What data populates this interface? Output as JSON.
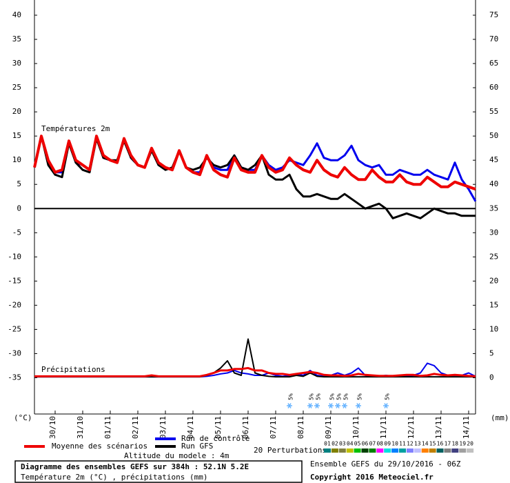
{
  "chart_data": {
    "type": "line",
    "title": "Diagramme des ensembles GEFS sur 384h : 52.1N 5.2E",
    "subtitle": "Température 2m (°C) , précipitations (mm)",
    "run_label": "Ensemble GEFS du 29/10/2016 - 06Z",
    "copyright": "Copyright 2016 Meteociel.fr",
    "altitude_label": "Altitude du modele : 4m",
    "temperature_label": "Températures 2m",
    "precipitation_label": "Précipitations",
    "y_axis_label": "(°C)",
    "y2_axis_label": "(mm)",
    "perturbations_label": "20 Perturbations",
    "x": [
      0,
      6,
      12,
      18,
      24,
      30,
      36,
      42,
      48,
      54,
      60,
      66,
      72,
      78,
      84,
      90,
      96,
      102,
      108,
      114,
      120,
      126,
      132,
      138,
      144,
      150,
      156,
      162,
      168,
      174,
      180,
      186,
      192,
      198,
      204,
      210,
      216,
      222,
      228,
      234,
      240,
      246,
      252,
      258,
      264,
      270,
      276,
      282,
      288,
      294,
      300,
      306,
      312,
      318,
      324,
      330,
      336,
      342,
      348,
      354,
      360,
      366,
      372,
      378,
      384
    ],
    "xlim": [
      0,
      384
    ],
    "xticks": [
      {
        "value": 18,
        "label": "30/10"
      },
      {
        "value": 42,
        "label": "31/10"
      },
      {
        "value": 66,
        "label": "01/11"
      },
      {
        "value": 90,
        "label": "02/11"
      },
      {
        "value": 114,
        "label": "03/11"
      },
      {
        "value": 138,
        "label": "04/11"
      },
      {
        "value": 162,
        "label": "05/11"
      },
      {
        "value": 186,
        "label": "06/11"
      },
      {
        "value": 210,
        "label": "07/11"
      },
      {
        "value": 234,
        "label": "08/11"
      },
      {
        "value": 258,
        "label": "09/11"
      },
      {
        "value": 282,
        "label": "10/11"
      },
      {
        "value": 306,
        "label": "11/11"
      },
      {
        "value": 330,
        "label": "12/11"
      },
      {
        "value": 354,
        "label": "13/11"
      },
      {
        "value": 378,
        "label": "14/11"
      }
    ],
    "ylim": [
      -42.5,
      43
    ],
    "yticks": [
      -35,
      -30,
      -25,
      -20,
      -15,
      -10,
      -5,
      0,
      5,
      10,
      15,
      20,
      25,
      30,
      35,
      40
    ],
    "y2lim": [
      -7.5,
      78
    ],
    "y2ticks": [
      0,
      5,
      10,
      15,
      20,
      25,
      30,
      35,
      40,
      45,
      50,
      55,
      60,
      65,
      70,
      75
    ],
    "series": [
      {
        "name": "Run de contrôle",
        "color": "#0000ee",
        "width": 3,
        "values": [
          8.5,
          15,
          9.5,
          7.5,
          7.5,
          14,
          9.5,
          9,
          8,
          15,
          10.5,
          10,
          9.5,
          14.5,
          10.5,
          9,
          8.5,
          12.5,
          9,
          8.5,
          8,
          12,
          8.5,
          7.5,
          7.5,
          11,
          8.5,
          8,
          8,
          11,
          8.5,
          8,
          8,
          11,
          9,
          8,
          8.5,
          10,
          9.5,
          9,
          11,
          13.5,
          10.5,
          10,
          10,
          11,
          13,
          10,
          9,
          8.5,
          9,
          7,
          7,
          8,
          7.5,
          7,
          7,
          8,
          7,
          6.5,
          6,
          9.5,
          6,
          4,
          1.5
        ]
      },
      {
        "name": "Run GFS",
        "color": "#000000",
        "width": 3,
        "values": [
          8.5,
          15,
          9,
          7,
          6.5,
          13.5,
          9.5,
          8,
          7.5,
          14.5,
          10.5,
          10,
          10,
          14,
          10.5,
          9,
          8.5,
          12,
          9,
          8,
          8.5,
          12,
          8.5,
          8,
          8.5,
          10.5,
          9,
          8.5,
          9,
          11,
          8.5,
          8,
          9,
          11,
          7,
          6,
          6,
          7,
          4,
          2.5,
          2.5,
          3,
          2.5,
          2,
          2,
          3,
          2,
          1,
          0,
          0.5,
          1,
          0,
          -2,
          -1.5,
          -1,
          -1.5,
          -2,
          -1,
          0,
          -0.5,
          -1,
          -1,
          -1.5,
          -1.5,
          -1.5
        ]
      },
      {
        "name": "Moyenne des scénarios",
        "color": "#ee0000",
        "width": 4,
        "values": [
          8.5,
          15,
          10,
          7.5,
          8,
          14,
          10,
          9,
          8,
          15,
          11,
          10,
          9.5,
          14.5,
          11,
          9,
          8.5,
          12.5,
          9.5,
          8.5,
          8,
          12,
          8.5,
          7.5,
          7,
          11,
          8,
          7,
          6.5,
          10.5,
          8,
          7.5,
          7.5,
          11,
          8.5,
          7.5,
          8,
          10.5,
          9,
          8,
          7.5,
          10,
          8,
          7,
          6.5,
          8.5,
          7,
          6,
          6,
          8,
          6.5,
          5.5,
          5.5,
          7,
          5.5,
          5,
          5,
          6.5,
          5.5,
          4.5,
          4.5,
          5.5,
          5,
          4.5,
          4
        ]
      },
      {
        "name": "Run de contrôle",
        "color": "#0000ee",
        "width": 2,
        "axis": "y2",
        "values": [
          0.2,
          0.2,
          0.2,
          0.2,
          0.2,
          0.2,
          0.2,
          0.2,
          0.2,
          0.2,
          0.2,
          0.2,
          0.2,
          0.2,
          0.2,
          0.2,
          0.2,
          0.2,
          0.2,
          0.2,
          0.2,
          0.2,
          0.2,
          0.2,
          0.2,
          0.3,
          0.5,
          0.8,
          1,
          1.5,
          1,
          0.8,
          0.5,
          0.5,
          1,
          0.5,
          0.3,
          0.5,
          0.8,
          0.5,
          1.5,
          0.5,
          0.3,
          0.5,
          1,
          0.5,
          1,
          2,
          0.5,
          0.3,
          0.3,
          0.5,
          0.3,
          0.5,
          0.3,
          0.5,
          1,
          3,
          2.5,
          1,
          0.5,
          0.5,
          0.5,
          1,
          0.3
        ]
      },
      {
        "name": "Run GFS",
        "color": "#000000",
        "width": 2,
        "axis": "y2",
        "values": [
          0.2,
          0.2,
          0.2,
          0.2,
          0.2,
          0.2,
          0.2,
          0.2,
          0.2,
          0.2,
          0.2,
          0.2,
          0.2,
          0.2,
          0.2,
          0.2,
          0.2,
          0.2,
          0.2,
          0.2,
          0.2,
          0.2,
          0.2,
          0.2,
          0.2,
          0.5,
          1,
          2,
          3.5,
          1,
          0.5,
          8,
          1,
          0.5,
          0.3,
          0.2,
          0.2,
          0.2,
          0.5,
          0.3,
          1,
          0.3,
          0.2,
          0.2,
          0.2,
          0.2,
          0.2,
          0.2,
          0.2,
          0.2,
          0.2,
          0.2,
          0.2,
          0.2,
          0.2,
          0.2,
          0.2,
          0.2,
          0.2,
          0.2,
          0.2,
          0.2,
          0.2,
          0.2,
          0.2
        ]
      },
      {
        "name": "Moyenne des scénarios",
        "color": "#ee0000",
        "width": 3,
        "axis": "y2",
        "values": [
          0.3,
          0.3,
          0.3,
          0.3,
          0.3,
          0.3,
          0.3,
          0.3,
          0.3,
          0.3,
          0.3,
          0.3,
          0.3,
          0.3,
          0.3,
          0.3,
          0.3,
          0.5,
          0.3,
          0.3,
          0.3,
          0.3,
          0.3,
          0.3,
          0.3,
          0.6,
          1,
          1.5,
          1.5,
          1.8,
          1.8,
          2,
          1.5,
          1.5,
          1,
          0.8,
          0.8,
          0.6,
          0.8,
          1,
          1.2,
          1,
          0.6,
          0.5,
          0.5,
          0.4,
          0.5,
          0.8,
          0.6,
          0.5,
          0.4,
          0.4,
          0.4,
          0.5,
          0.6,
          0.6,
          0.4,
          0.5,
          0.8,
          0.6,
          0.5,
          0.6,
          0.5,
          0.4,
          0.3
        ]
      }
    ],
    "snow": [
      {
        "x": 222,
        "label": "5%"
      },
      {
        "x": 240,
        "label": "5%"
      },
      {
        "x": 246,
        "label": "5%"
      },
      {
        "x": 258,
        "label": "5%"
      },
      {
        "x": 264,
        "label": "5%"
      },
      {
        "x": 270,
        "label": "5%"
      },
      {
        "x": 282,
        "label": "5%"
      },
      {
        "x": 306,
        "label": "5%"
      }
    ],
    "perturbations": [
      {
        "name": "01",
        "color": "#008080"
      },
      {
        "name": "02",
        "color": "#808000"
      },
      {
        "name": "03",
        "color": "#808040"
      },
      {
        "name": "04",
        "color": "#c0c000"
      },
      {
        "name": "05",
        "color": "#00c000"
      },
      {
        "name": "06",
        "color": "#004000"
      },
      {
        "name": "07",
        "color": "#008000"
      },
      {
        "name": "08",
        "color": "#ff00ff"
      },
      {
        "name": "09",
        "color": "#00e0e0"
      },
      {
        "name": "10",
        "color": "#0080ff"
      },
      {
        "name": "11",
        "color": "#00a0a0"
      },
      {
        "name": "12",
        "color": "#8080ff"
      },
      {
        "name": "13",
        "color": "#c0c0ff"
      },
      {
        "name": "14",
        "color": "#ff8000"
      },
      {
        "name": "15",
        "color": "#c08000"
      },
      {
        "name": "16",
        "color": "#006060"
      },
      {
        "name": "17",
        "color": "#808080"
      },
      {
        "name": "18",
        "color": "#404080"
      },
      {
        "name": "19",
        "color": "#a0a0a0"
      },
      {
        "name": "20",
        "color": "#c0c0c0"
      }
    ]
  }
}
